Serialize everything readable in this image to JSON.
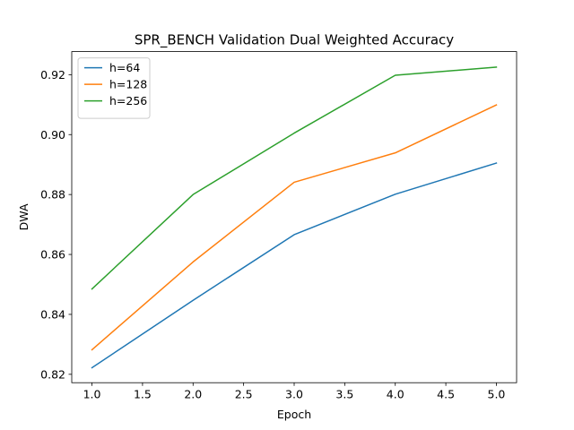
{
  "chart_data": {
    "type": "line",
    "title": "SPR_BENCH Validation Dual Weighted Accuracy",
    "xlabel": "Epoch",
    "ylabel": "DWA",
    "x": [
      1.0,
      2.0,
      3.0,
      4.0,
      5.0
    ],
    "xlim": [
      0.8,
      5.2
    ],
    "ylim": [
      0.8172,
      0.9277
    ],
    "x_ticks": [
      1.0,
      1.5,
      2.0,
      2.5,
      3.0,
      3.5,
      4.0,
      4.5,
      5.0
    ],
    "x_tick_labels": [
      "1.0",
      "1.5",
      "2.0",
      "2.5",
      "3.0",
      "3.5",
      "4.0",
      "4.5",
      "5.0"
    ],
    "y_ticks": [
      0.82,
      0.84,
      0.86,
      0.88,
      0.9,
      0.92
    ],
    "y_tick_labels": [
      "0.82",
      "0.84",
      "0.86",
      "0.88",
      "0.90",
      "0.92"
    ],
    "grid": false,
    "legend_position": "top-left",
    "series": [
      {
        "name": "h=64",
        "color": "#1f77b4",
        "values": [
          0.8222,
          0.8447,
          0.8666,
          0.8801,
          0.8905
        ]
      },
      {
        "name": "h=128",
        "color": "#ff7f0e",
        "values": [
          0.8282,
          0.8575,
          0.8841,
          0.8939,
          0.9099
        ]
      },
      {
        "name": "h=256",
        "color": "#2ca02c",
        "values": [
          0.8485,
          0.88,
          0.9005,
          0.9198,
          0.9225
        ]
      }
    ]
  }
}
